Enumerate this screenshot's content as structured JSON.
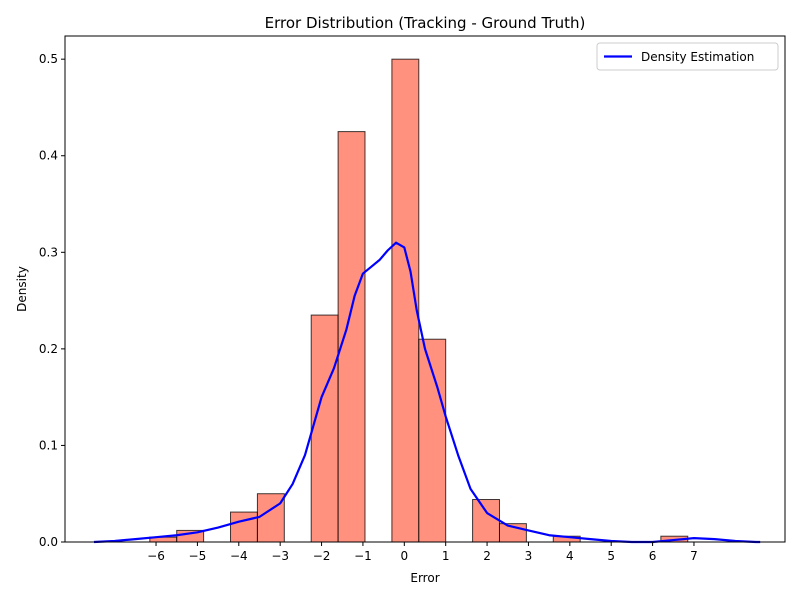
{
  "chart_data": {
    "type": "bar",
    "title": "Error Distribution (Tracking - Ground Truth)",
    "xlabel": "Error",
    "ylabel": "Density",
    "xlim": [
      -8.2,
      9.2
    ],
    "ylim": [
      0,
      0.524
    ],
    "xticks": [
      -6,
      -5,
      -4,
      -3,
      -2,
      -1,
      0,
      1,
      2,
      3,
      4,
      5,
      6,
      7
    ],
    "yticks": [
      0.0,
      0.1,
      0.2,
      0.3,
      0.4,
      0.5
    ],
    "bins": [
      {
        "x0": -6.15,
        "x1": -5.5,
        "value": 0.005
      },
      {
        "x0": -5.5,
        "x1": -4.85,
        "value": 0.012
      },
      {
        "x0": -4.2,
        "x1": -3.55,
        "value": 0.031
      },
      {
        "x0": -3.55,
        "x1": -2.9,
        "value": 0.05
      },
      {
        "x0": -2.25,
        "x1": -1.6,
        "value": 0.235
      },
      {
        "x0": -1.6,
        "x1": -0.95,
        "value": 0.425
      },
      {
        "x0": -0.3,
        "x1": 0.35,
        "value": 0.5
      },
      {
        "x0": 0.35,
        "x1": 1.0,
        "value": 0.21
      },
      {
        "x0": 1.65,
        "x1": 2.3,
        "value": 0.044
      },
      {
        "x0": 2.3,
        "x1": 2.95,
        "value": 0.019
      },
      {
        "x0": 3.6,
        "x1": 4.25,
        "value": 0.006
      },
      {
        "x0": 6.2,
        "x1": 6.85,
        "value": 0.006
      }
    ],
    "bar_color": "#ff6347",
    "bar_edge_color": "#000000",
    "density": {
      "name": "Density Estimation",
      "color": "#0000ff",
      "x": [
        -7.5,
        -7.0,
        -6.5,
        -6.0,
        -5.5,
        -5.0,
        -4.5,
        -4.0,
        -3.5,
        -3.0,
        -2.7,
        -2.4,
        -2.0,
        -1.7,
        -1.4,
        -1.2,
        -1.0,
        -0.8,
        -0.6,
        -0.4,
        -0.2,
        0.0,
        0.15,
        0.3,
        0.5,
        0.8,
        1.0,
        1.3,
        1.6,
        2.0,
        2.5,
        3.0,
        3.5,
        4.0,
        4.5,
        5.0,
        5.5,
        6.0,
        6.5,
        7.0,
        7.5,
        8.0,
        8.5,
        8.6
      ],
      "y": [
        0.0,
        0.001,
        0.003,
        0.005,
        0.007,
        0.01,
        0.015,
        0.021,
        0.026,
        0.04,
        0.06,
        0.09,
        0.15,
        0.18,
        0.22,
        0.255,
        0.278,
        0.285,
        0.292,
        0.302,
        0.31,
        0.305,
        0.28,
        0.24,
        0.2,
        0.16,
        0.13,
        0.09,
        0.055,
        0.03,
        0.017,
        0.012,
        0.007,
        0.005,
        0.003,
        0.001,
        0.0,
        0.0,
        0.002,
        0.004,
        0.003,
        0.001,
        0.0,
        0.0
      ]
    },
    "legend": {
      "position": "top-right",
      "entries": [
        "Density Estimation"
      ]
    },
    "grid": false
  }
}
